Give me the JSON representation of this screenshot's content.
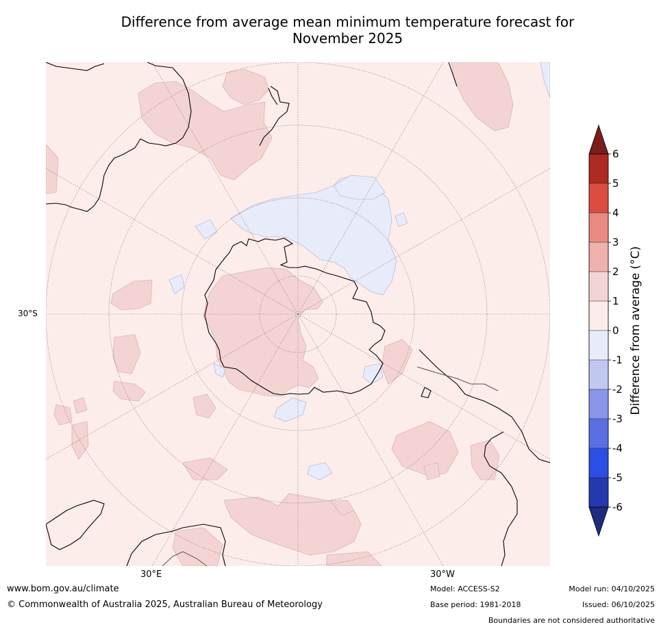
{
  "title": {
    "line1": "Difference from average mean minimum temperature forecast for",
    "line2": "November 2025"
  },
  "map": {
    "lat_label": "30°S",
    "lon_labels": {
      "east": "30°E",
      "west": "30°W"
    },
    "colors": {
      "ocean_base": "#fcecea",
      "warm_1_2": "#f4d4d3",
      "cool_0_m1": "#e8ebfa",
      "coast": "#000000",
      "graticule": "#7a6a6a"
    }
  },
  "legend": {
    "title": "Difference from average (°C)",
    "ticks": [
      "6",
      "5",
      "4",
      "3",
      "2",
      "1",
      "0",
      "-1",
      "-2",
      "-3",
      "-4",
      "-5",
      "-6"
    ],
    "bins": [
      {
        "range": ">6",
        "color": "#7b1e1b"
      },
      {
        "range": "5 to 6",
        "color": "#ad2a22"
      },
      {
        "range": "4 to 5",
        "color": "#dc4c40"
      },
      {
        "range": "3 to 4",
        "color": "#e88a82"
      },
      {
        "range": "2 to 3",
        "color": "#efb1ab"
      },
      {
        "range": "1 to 2",
        "color": "#f4d4d3"
      },
      {
        "range": "0 to 1",
        "color": "#fcecea"
      },
      {
        "range": "-1 to 0",
        "color": "#e8ebfa"
      },
      {
        "range": "-2 to -1",
        "color": "#c0c8f2"
      },
      {
        "range": "-3 to -2",
        "color": "#8796ea"
      },
      {
        "range": "-4 to -3",
        "color": "#5a6fe2"
      },
      {
        "range": "-5 to -4",
        "color": "#2c4ee2"
      },
      {
        "range": "-6 to -5",
        "color": "#2538ad"
      },
      {
        "range": "<-6",
        "color": "#1d2b80"
      }
    ]
  },
  "footer": {
    "url": "www.bom.gov.au/climate",
    "copyright": "© Commonwealth of Australia 2025, Australian Bureau of Meteorology",
    "model": "Model: ACCESS-S2",
    "base_period": "Base period: 1981-2018",
    "model_run": "Model run: 04/10/2025",
    "issued": "Issued: 06/10/2025",
    "disclaimer": "Boundaries are not considered authoritative"
  }
}
